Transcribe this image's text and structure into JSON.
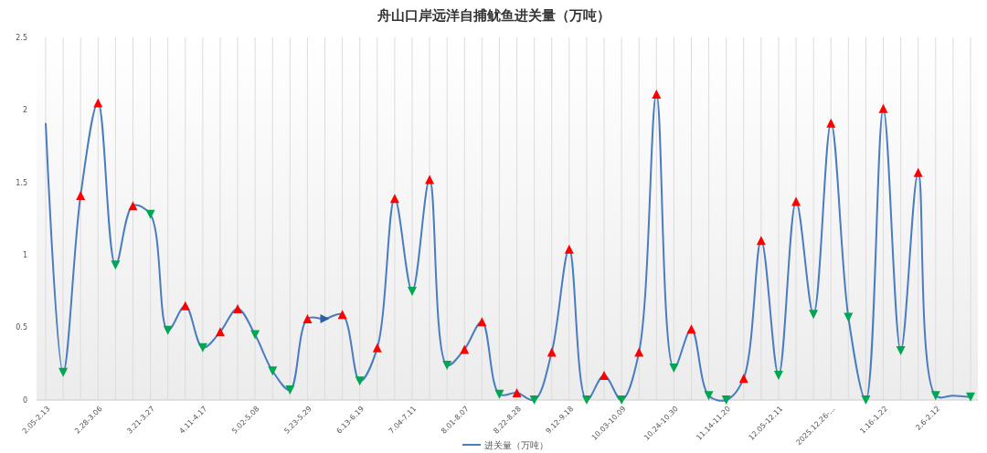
{
  "chart_data": {
    "type": "line",
    "title": "舟山口岸远洋自捕鱿鱼进关量（万吨）",
    "categories": [
      "2.05-2.13",
      null,
      null,
      "2.28-3.06",
      null,
      null,
      "3.21-3.27",
      null,
      null,
      "4.11-4.17",
      null,
      null,
      "5.02-5.08",
      null,
      null,
      "5.23-5.29",
      null,
      null,
      "6.13-6.19",
      null,
      null,
      "7.04-7.11",
      null,
      null,
      "8.01-8.07",
      null,
      null,
      "8.22-8.28",
      null,
      null,
      "9.12-9.18",
      null,
      null,
      "10.03-10.09",
      null,
      null,
      "10.24-10.30",
      null,
      null,
      "11.14-11.20",
      null,
      null,
      "12.05-12.11",
      null,
      null,
      "2025.12.26-...",
      null,
      null,
      "1.16-1.22",
      null,
      null,
      "2.6-2.12",
      null,
      null
    ],
    "series": [
      {
        "name": "进关量（万吨）",
        "color": "#4a7cc0",
        "values": [
          1.91,
          0.19,
          1.41,
          2.05,
          0.93,
          1.34,
          1.28,
          0.48,
          0.65,
          0.36,
          0.47,
          0.63,
          0.45,
          0.2,
          0.07,
          0.56,
          0.56,
          0.59,
          0.13,
          0.36,
          1.39,
          0.75,
          1.52,
          0.24,
          0.35,
          0.54,
          0.04,
          0.05,
          0,
          0.33,
          1.04,
          0,
          0.17,
          0,
          0.33,
          2.11,
          0.22,
          0.49,
          0.03,
          0,
          0.15,
          1.1,
          0.17,
          1.37,
          0.59,
          1.91,
          0.57,
          0,
          2.01,
          0.34,
          1.57,
          0.03,
          0.03,
          0.02
        ],
        "colors": [
          null,
          "#00a651",
          "#ff0000",
          "#ff0000",
          "#00a651",
          "#ff0000",
          "#00a651",
          "#00a651",
          "#ff0000",
          "#00a651",
          "#ff0000",
          "#ff0000",
          "#00a651",
          "#00a651",
          "#00a651",
          "#ff0000",
          "#2e5e9e",
          "#ff0000",
          "#00a651",
          "#ff0000",
          "#ff0000",
          "#00a651",
          "#ff0000",
          "#00a651",
          "#ff0000",
          "#ff0000",
          "#00a651",
          "#ff0000",
          "#00a651",
          "#ff0000",
          "#ff0000",
          "#00a651",
          "#ff0000",
          "#00a651",
          "#ff0000",
          "#ff0000",
          "#00a651",
          "#ff0000",
          "#00a651",
          "#00a651",
          "#ff0000",
          "#ff0000",
          "#00a651",
          "#ff0000",
          "#00a651",
          "#ff0000",
          "#00a651",
          "#00a651",
          "#ff0000",
          "#00a651",
          "#ff0000",
          "#00a651",
          null,
          "#00a651"
        ]
      }
    ],
    "ylim": [
      0,
      2.5
    ],
    "yticks": [
      0,
      0.5,
      1,
      1.5,
      2,
      2.5
    ],
    "grid": "x",
    "legend": "bottom",
    "marker": "triangle",
    "line_style": "solid"
  }
}
